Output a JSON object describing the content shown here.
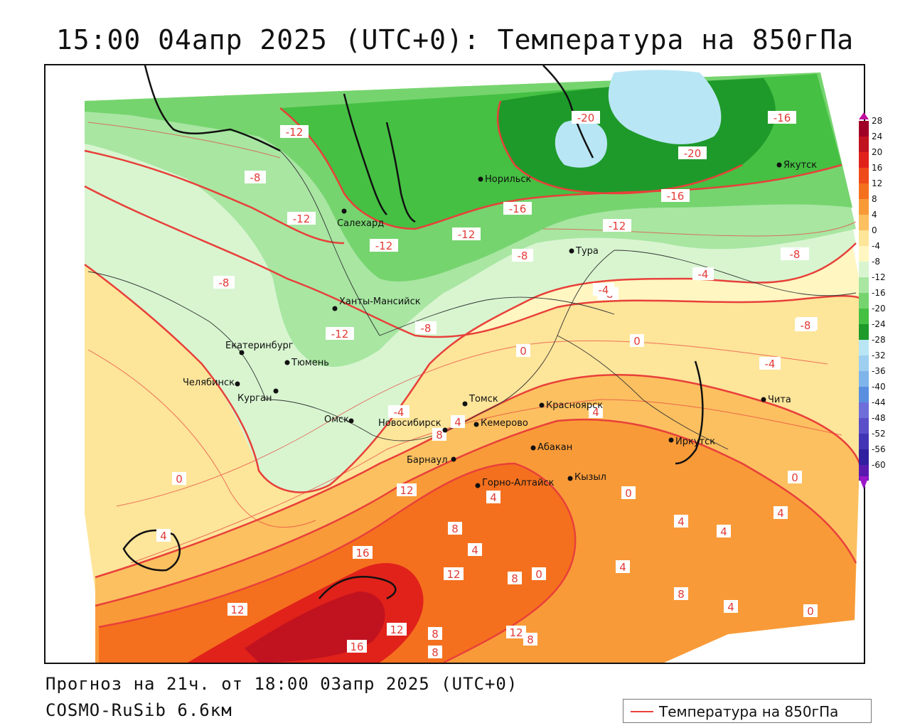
{
  "title": "15:00 04апр 2025 (UTC+0): Температура на 850гПа",
  "footer": {
    "forecast": "Прогноз на 21ч. от 18:00 03апр 2025 (UTC+0)",
    "model": "COSMO-RuSib 6.6км"
  },
  "legend": {
    "label": "Температура на 850гПа",
    "line_color": "#e8403a"
  },
  "colorbar": {
    "ticks": [
      "28",
      "24",
      "20",
      "16",
      "12",
      "8",
      "4",
      "0",
      "-4",
      "-8",
      "-12",
      "-16",
      "-20",
      "-24",
      "-28",
      "-32",
      "-36",
      "-40",
      "-44",
      "-48",
      "-52",
      "-56",
      "-60"
    ],
    "colors": [
      "#a10026",
      "#c1121f",
      "#e0221b",
      "#ee4a1a",
      "#f5701e",
      "#f99a38",
      "#fcc060",
      "#fde59a",
      "#fff6c2",
      "#d8f5d0",
      "#a8e6a2",
      "#76d46f",
      "#45c043",
      "#1e9a2a",
      "#b9e6f5",
      "#9ecff0",
      "#7fb5ea",
      "#5a8fe0",
      "#6e6edb",
      "#5a4fc9",
      "#4334b5",
      "#3020a0",
      "#5a1ab0"
    ]
  },
  "cities": [
    {
      "name": "Норильск"
    },
    {
      "name": "Якутск"
    },
    {
      "name": "Салехард"
    },
    {
      "name": "Тура"
    },
    {
      "name": "Ханты-Мансийск"
    },
    {
      "name": "Екатеринбург"
    },
    {
      "name": "Тюмень"
    },
    {
      "name": "Челябинск"
    },
    {
      "name": "Курган"
    },
    {
      "name": "Омск"
    },
    {
      "name": "Новосибирск"
    },
    {
      "name": "Томск"
    },
    {
      "name": "Кемерово"
    },
    {
      "name": "Красноярск"
    },
    {
      "name": "Абакан"
    },
    {
      "name": "Барнаул"
    },
    {
      "name": "Горно-Алтайск"
    },
    {
      "name": "Кызыл"
    },
    {
      "name": "Иркутск"
    },
    {
      "name": "Чита"
    }
  ],
  "isotherm_labels": [
    "-12",
    "-20",
    "-16",
    "-20",
    "-8",
    "-16",
    "-16",
    "-12",
    "-12",
    "-12",
    "-12",
    "-8",
    "-8",
    "-4",
    "-8",
    "-8",
    "-4",
    "-12",
    "-8",
    "-8",
    "-4",
    "0",
    "0",
    "-4",
    "-4",
    "8",
    "4",
    "4",
    "0",
    "0",
    "0",
    "12",
    "4",
    "8",
    "4",
    "4",
    "4",
    "4",
    "16",
    "4",
    "12",
    "0",
    "8",
    "8",
    "4",
    "12",
    "12",
    "16",
    "8",
    "8",
    "12",
    "8",
    "0",
    "4"
  ]
}
